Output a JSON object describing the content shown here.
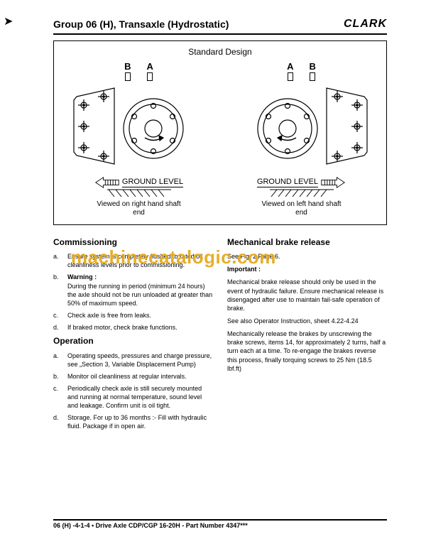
{
  "header": {
    "group_title": "Group  06 (H), Transaxle (Hydrostatic)",
    "brand": "CLARK"
  },
  "diagram": {
    "title": "Standard Design",
    "left": {
      "label_b": "B",
      "label_a": "A",
      "ground_label": "GROUND LEVEL",
      "caption": "Viewed on right hand shaft\nend"
    },
    "right": {
      "label_a": "A",
      "label_b": "B",
      "ground_label": "GROUND LEVEL",
      "caption": "Viewed on left hand shaft\nend"
    },
    "colors": {
      "stroke": "#000000",
      "fill": "#ffffff"
    }
  },
  "watermark": "machinecatalogic.com",
  "left_column": {
    "section1_title": "Commissioning",
    "items1": [
      {
        "lbl": "a.",
        "txt": "Ensure system is completely flushed to rated oil cleanliness levels prior to commissioning."
      },
      {
        "lbl": "b.",
        "bold": "Warning :",
        "txt": "During the running in period (minimum 24 hours) the axle should not be run unloaded at greater than 50% of maximum speed."
      },
      {
        "lbl": "c.",
        "txt": "Check axle is free from leaks."
      },
      {
        "lbl": "d.",
        "txt": "If braked motor, check brake functions."
      }
    ],
    "section2_title": "Operation",
    "items2": [
      {
        "lbl": "a.",
        "txt": "Operating speeds, pressures and charge pressure, see „Section 3, Variable Displacement Pump)"
      },
      {
        "lbl": "b.",
        "txt": "Monitor oil cleanliness at regular intervals."
      },
      {
        "lbl": "c.",
        "txt": "Periodically check axle is still securely mounted and running at normal temperature, sound level and leakage. Confirm unit is oil tight."
      },
      {
        "lbl": "d.",
        "txt": "Storage. For up to 36 months :- Fill with hydraulic fluid. Package if in open air."
      }
    ]
  },
  "right_column": {
    "section_title": "Mechanical brake release",
    "p1": "See Fig. 2 Page 6.",
    "p2_bold": "Important :",
    "p3": "Mechanical brake release should only be used in the event of hydraulic failure. Ensure mechanical release is disengaged after use to maintain fail-safe operation of brake.",
    "p4": "See also Operator Instruction, sheet 4.22-4.24",
    "p5": "Mechanically release the brakes by unscrewing the brake screws, items 14, for approximately 2 turns, half a turn each at a time. To re-engage the brakes reverse this process, finally torquing screws to 25 Nm (18.5 lbf.ft)"
  },
  "footer": "06 (H) -4-1-4  •  Drive Axle CDP/CGP 16-20H - Part Number 4347***"
}
